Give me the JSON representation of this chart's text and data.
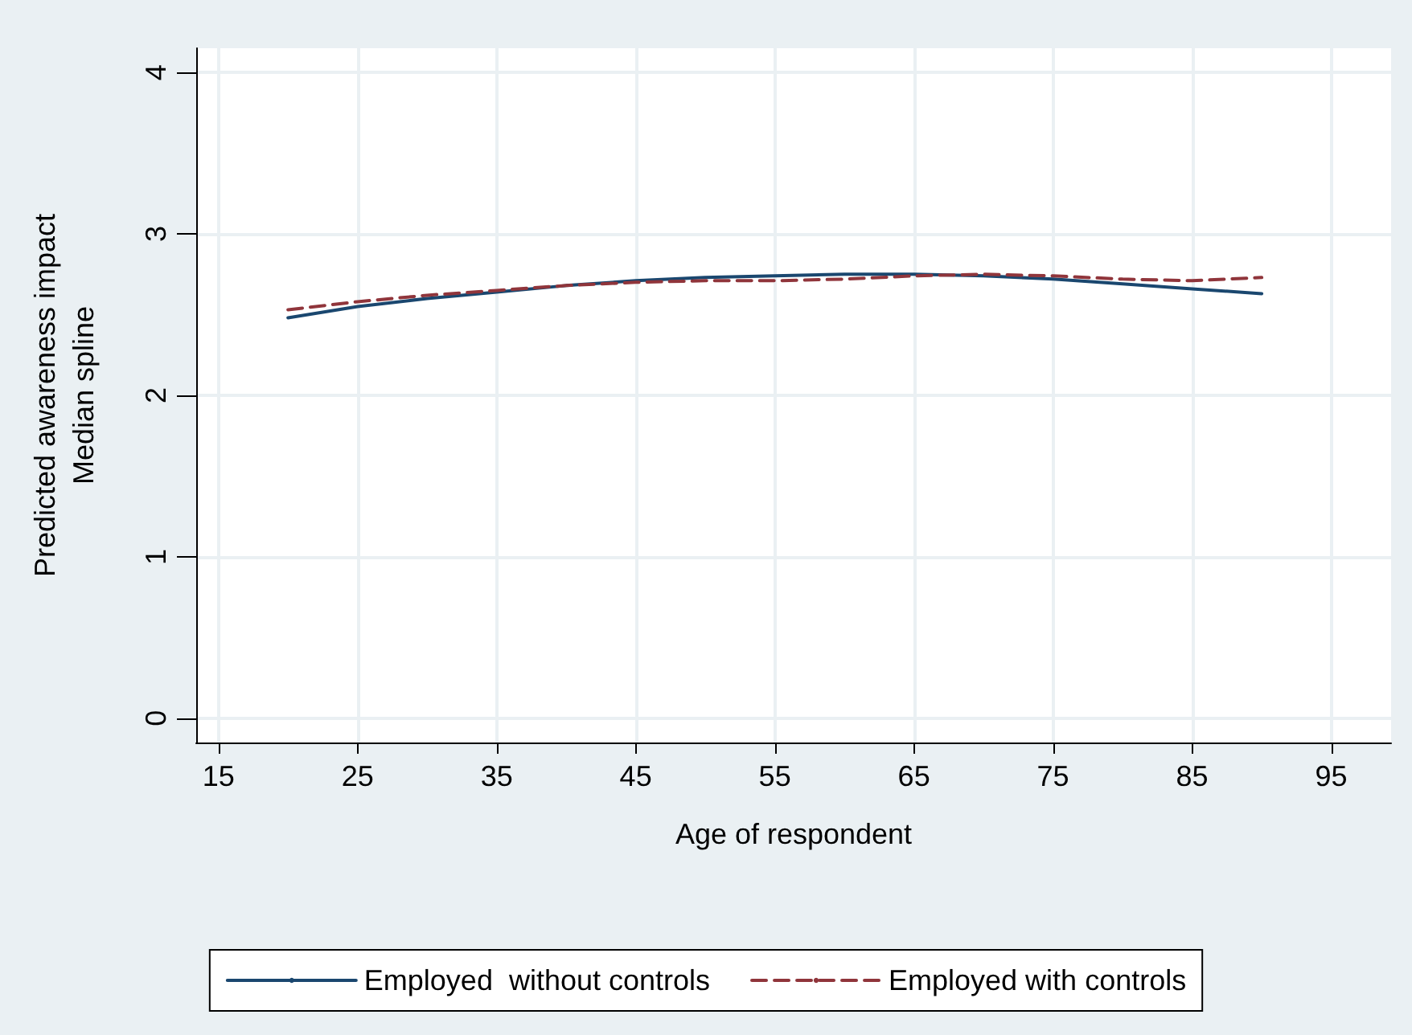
{
  "chart_data": {
    "type": "line",
    "xlabel": "Age of respondent",
    "ylabel": "Predicted awareness impact\nMedian spline",
    "xlim": [
      13.4,
      99.3
    ],
    "xticks": [
      15,
      25,
      35,
      45,
      55,
      65,
      75,
      85,
      95
    ],
    "ylim": [
      -0.15,
      4.15
    ],
    "yticks": [
      0,
      1,
      2,
      3,
      4
    ],
    "grid": true,
    "legend": "bottom",
    "marker": "none",
    "series": [
      {
        "name": "Employed  without controls",
        "color": "#1a476f",
        "line_style": "solid",
        "x": [
          20,
          25,
          30,
          35,
          40,
          45,
          50,
          55,
          60,
          65,
          70,
          75,
          80,
          85,
          90
        ],
        "values": [
          2.48,
          2.55,
          2.6,
          2.64,
          2.68,
          2.71,
          2.73,
          2.74,
          2.75,
          2.75,
          2.74,
          2.72,
          2.69,
          2.66,
          2.63
        ]
      },
      {
        "name": "Employed with controls",
        "color": "#90353b",
        "line_style": "dashed",
        "x": [
          20,
          25,
          30,
          35,
          40,
          45,
          50,
          55,
          60,
          65,
          70,
          75,
          80,
          85,
          90
        ],
        "values": [
          2.53,
          2.58,
          2.62,
          2.65,
          2.68,
          2.7,
          2.71,
          2.71,
          2.72,
          2.74,
          2.75,
          2.74,
          2.72,
          2.71,
          2.73
        ]
      }
    ]
  }
}
